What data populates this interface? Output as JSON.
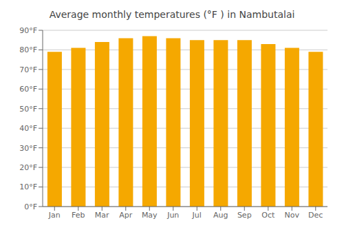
{
  "chart_data": {
    "type": "bar",
    "title": "Average monthly temperatures (°F ) in Nambutalai",
    "categories": [
      "Jan",
      "Feb",
      "Mar",
      "Apr",
      "May",
      "Jun",
      "Jul",
      "Aug",
      "Sep",
      "Oct",
      "Nov",
      "Dec"
    ],
    "values": [
      79,
      81,
      84,
      86,
      87,
      86,
      85,
      85,
      85,
      83,
      81,
      79
    ],
    "color": "#F5A800",
    "ylim": [
      0,
      90
    ],
    "yticks": [
      {
        "value": 0,
        "label": "0°F"
      },
      {
        "value": 10,
        "label": "10°F"
      },
      {
        "value": 20,
        "label": "20°F"
      },
      {
        "value": 30,
        "label": "30°F"
      },
      {
        "value": 40,
        "label": "40°F"
      },
      {
        "value": 50,
        "label": "50°F"
      },
      {
        "value": 60,
        "label": "60°F"
      },
      {
        "value": 70,
        "label": "70°F"
      },
      {
        "value": 80,
        "label": "80°F"
      },
      {
        "value": 90,
        "label": "90°F"
      }
    ],
    "grid": true
  }
}
